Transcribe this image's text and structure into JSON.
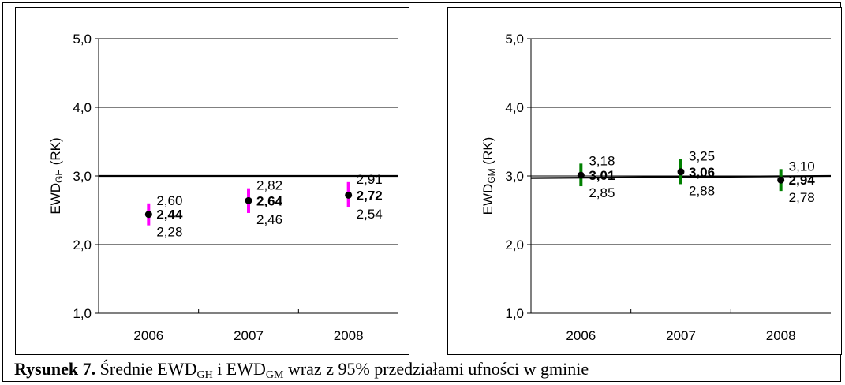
{
  "chart_data": [
    {
      "type": "scatter",
      "title": "",
      "xlabel": "",
      "ylabel": "EWD",
      "ylabel_sub": "GH",
      "ylabel_suffix": " (RK)",
      "categories": [
        "2006",
        "2007",
        "2008"
      ],
      "ylim": [
        1.0,
        5.0
      ],
      "yticks": [
        "1,0",
        "2,0",
        "3,0",
        "4,0",
        "5,0"
      ],
      "yticks_values": [
        1,
        2,
        3,
        4,
        5
      ],
      "grid": true,
      "reference_line": [
        3.0,
        3.0
      ],
      "ci_color": "#ff00ff",
      "points": [
        {
          "mean": 2.44,
          "lower": 2.28,
          "upper": 2.6,
          "mean_label": "2,44",
          "lower_label": "2,28",
          "upper_label": "2,60"
        },
        {
          "mean": 2.64,
          "lower": 2.46,
          "upper": 2.82,
          "mean_label": "2,64",
          "lower_label": "2,46",
          "upper_label": "2,82"
        },
        {
          "mean": 2.72,
          "lower": 2.54,
          "upper": 2.91,
          "mean_label": "2,72",
          "lower_label": "2,54",
          "upper_label": "2,91"
        }
      ]
    },
    {
      "type": "scatter",
      "title": "",
      "xlabel": "",
      "ylabel": "EWD",
      "ylabel_sub": "GM",
      "ylabel_suffix": " (RK)",
      "categories": [
        "2006",
        "2007",
        "2008"
      ],
      "ylim": [
        1.0,
        5.0
      ],
      "yticks": [
        "1,0",
        "2,0",
        "3,0",
        "4,0",
        "5,0"
      ],
      "yticks_values": [
        1,
        2,
        3,
        4,
        5
      ],
      "grid": true,
      "reference_line": [
        2.97,
        3.0
      ],
      "ci_color": "#008000",
      "points": [
        {
          "mean": 3.01,
          "lower": 2.85,
          "upper": 3.18,
          "mean_label": "3,01",
          "lower_label": "2,85",
          "upper_label": "3,18"
        },
        {
          "mean": 3.06,
          "lower": 2.88,
          "upper": 3.25,
          "mean_label": "3,06",
          "lower_label": "2,88",
          "upper_label": "3,25"
        },
        {
          "mean": 2.94,
          "lower": 2.78,
          "upper": 3.1,
          "mean_label": "2,94",
          "lower_label": "2,78",
          "upper_label": "3,10"
        }
      ]
    }
  ],
  "caption": {
    "lead": "Rysunek 7.",
    "t1": " Średnie EWD",
    "s1": "GH",
    "t2": " i EWD",
    "s2": "GM",
    "t3": " wraz z 95% przedziałami ufności w gminie"
  }
}
